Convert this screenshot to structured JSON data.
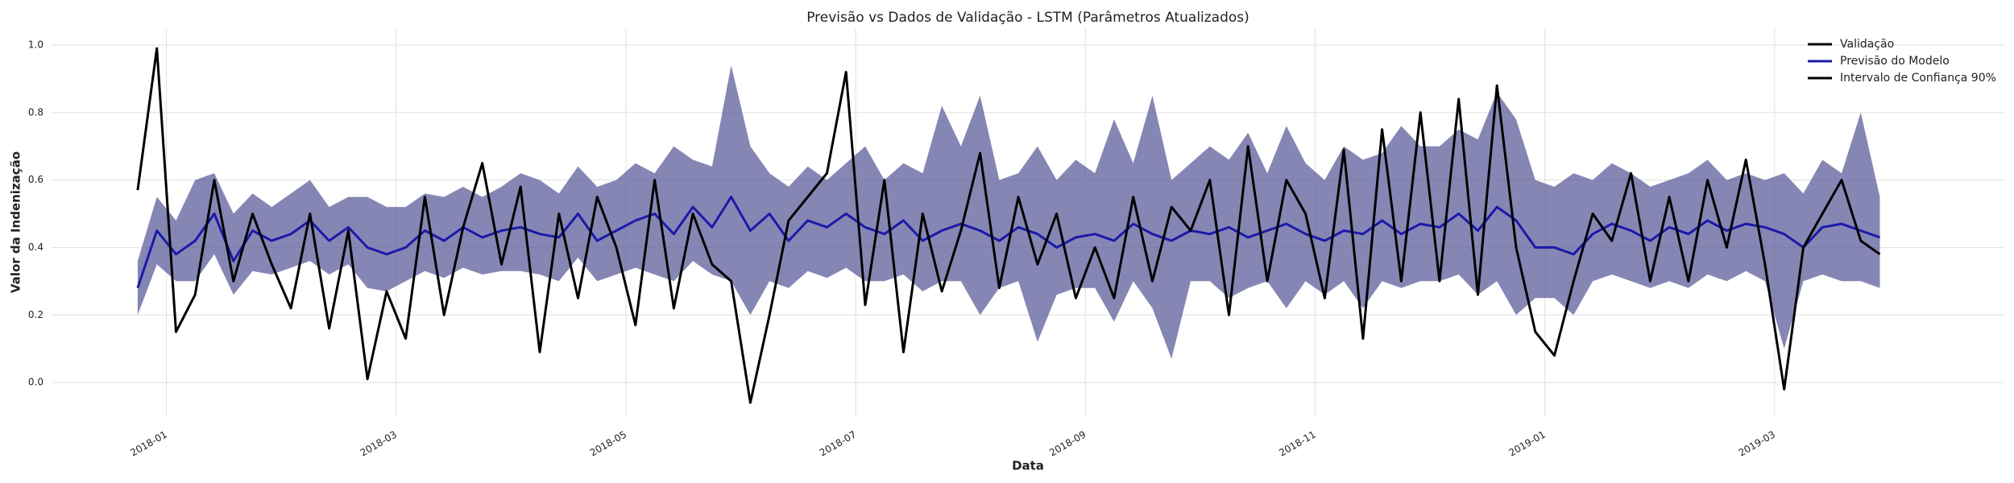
{
  "chart_data": {
    "type": "line",
    "title": "Previsão vs Dados de Validação - LSTM (Parâmetros Atualizados)",
    "x_label": "Data",
    "y_label": "Valor da Indenização",
    "x": [
      "2017-12",
      "2017-12",
      "2017-12",
      "2017-12",
      "2017-12",
      "2017-12",
      "2018-01",
      "2018-01",
      "2018-01",
      "2018-01",
      "2018-01",
      "2018-01",
      "2018-02",
      "2018-02",
      "2018-02",
      "2018-02",
      "2018-02",
      "2018-02",
      "2018-03",
      "2018-03",
      "2018-03",
      "2018-03",
      "2018-03",
      "2018-03",
      "2018-04",
      "2018-04",
      "2018-04",
      "2018-04",
      "2018-04",
      "2018-04",
      "2018-05",
      "2018-05",
      "2018-05",
      "2018-05",
      "2018-05",
      "2018-05",
      "2018-06",
      "2018-06",
      "2018-06",
      "2018-06",
      "2018-06",
      "2018-06",
      "2018-07",
      "2018-07",
      "2018-07",
      "2018-07",
      "2018-07",
      "2018-07",
      "2018-08",
      "2018-08",
      "2018-08",
      "2018-08",
      "2018-08",
      "2018-08",
      "2018-09",
      "2018-09",
      "2018-09",
      "2018-09",
      "2018-09",
      "2018-09",
      "2018-10",
      "2018-10",
      "2018-10",
      "2018-10",
      "2018-10",
      "2018-10",
      "2018-11",
      "2018-11",
      "2018-11",
      "2018-11",
      "2018-11",
      "2018-11",
      "2018-12",
      "2018-12",
      "2018-12",
      "2018-12",
      "2018-12",
      "2018-12",
      "2019-01",
      "2019-01",
      "2019-01",
      "2019-01",
      "2019-01",
      "2019-01",
      "2019-02",
      "2019-02",
      "2019-02",
      "2019-02",
      "2019-02",
      "2019-02",
      "2019-03",
      "2019-03",
      "2019-03",
      "2019-03",
      "2019-03",
      "2019-03"
    ],
    "series": [
      {
        "name": "Validação",
        "color": "#000000",
        "values": [
          null,
          null,
          null,
          null,
          0.57,
          0.99,
          0.15,
          0.26,
          0.6,
          0.3,
          0.5,
          0.35,
          0.22,
          0.5,
          0.16,
          0.45,
          0.01,
          0.27,
          0.13,
          0.55,
          0.2,
          0.46,
          0.65,
          0.35,
          0.58,
          0.09,
          0.5,
          0.25,
          0.55,
          0.4,
          0.17,
          0.6,
          0.22,
          0.5,
          0.35,
          0.3,
          -0.06,
          0.2,
          0.48,
          0.55,
          0.62,
          0.92,
          0.23,
          0.6,
          0.09,
          0.5,
          0.27,
          0.45,
          0.68,
          0.28,
          0.55,
          0.35,
          0.5,
          0.25,
          0.4,
          0.25,
          0.55,
          0.3,
          0.52,
          0.45,
          0.6,
          0.2,
          0.7,
          0.3,
          0.6,
          0.5,
          0.25,
          0.69,
          0.13,
          0.75,
          0.3,
          0.8,
          0.3,
          0.84,
          0.26,
          0.88,
          0.4,
          0.15,
          0.08,
          0.3,
          0.5,
          0.42,
          0.62,
          0.3,
          0.55,
          0.3,
          0.6,
          0.4,
          0.66,
          0.35,
          -0.02,
          0.4,
          0.5,
          0.6,
          0.42,
          0.38
        ]
      },
      {
        "name": "Previsão do Modelo",
        "color": "#1a1aa8",
        "values": [
          null,
          null,
          null,
          null,
          0.28,
          0.45,
          0.38,
          0.42,
          0.5,
          0.36,
          0.45,
          0.42,
          0.44,
          0.48,
          0.42,
          0.46,
          0.4,
          0.38,
          0.4,
          0.45,
          0.42,
          0.46,
          0.43,
          0.45,
          0.46,
          0.44,
          0.43,
          0.5,
          0.42,
          0.45,
          0.48,
          0.5,
          0.44,
          0.52,
          0.46,
          0.55,
          0.45,
          0.5,
          0.42,
          0.48,
          0.46,
          0.5,
          0.46,
          0.44,
          0.48,
          0.42,
          0.45,
          0.47,
          0.45,
          0.42,
          0.46,
          0.44,
          0.4,
          0.43,
          0.44,
          0.42,
          0.47,
          0.44,
          0.42,
          0.45,
          0.44,
          0.46,
          0.43,
          0.45,
          0.47,
          0.44,
          0.42,
          0.45,
          0.44,
          0.48,
          0.44,
          0.47,
          0.46,
          0.5,
          0.45,
          0.52,
          0.48,
          0.4,
          0.4,
          0.38,
          0.44,
          0.47,
          0.45,
          0.42,
          0.46,
          0.44,
          0.48,
          0.45,
          0.47,
          0.46,
          0.44,
          0.4,
          0.46,
          0.47,
          0.45,
          0.43
        ]
      }
    ],
    "interval": {
      "name": "Intervalo de Confiança 90%",
      "color": "#000000",
      "fill": "#5d5d9c",
      "lower": [
        null,
        null,
        null,
        null,
        0.2,
        0.35,
        0.3,
        0.3,
        0.38,
        0.26,
        0.33,
        0.32,
        0.34,
        0.36,
        0.32,
        0.35,
        0.28,
        0.27,
        0.3,
        0.33,
        0.31,
        0.34,
        0.32,
        0.33,
        0.33,
        0.32,
        0.3,
        0.37,
        0.3,
        0.32,
        0.34,
        0.32,
        0.3,
        0.36,
        0.32,
        0.3,
        0.2,
        0.3,
        0.28,
        0.33,
        0.31,
        0.34,
        0.3,
        0.3,
        0.32,
        0.27,
        0.3,
        0.3,
        0.2,
        0.28,
        0.3,
        0.12,
        0.26,
        0.28,
        0.28,
        0.18,
        0.3,
        0.22,
        0.07,
        0.3,
        0.3,
        0.25,
        0.28,
        0.3,
        0.22,
        0.3,
        0.26,
        0.3,
        0.22,
        0.3,
        0.28,
        0.3,
        0.3,
        0.32,
        0.26,
        0.3,
        0.2,
        0.25,
        0.25,
        0.2,
        0.3,
        0.32,
        0.3,
        0.28,
        0.3,
        0.28,
        0.32,
        0.3,
        0.33,
        0.3,
        0.1,
        0.3,
        0.32,
        0.3,
        0.3,
        0.28
      ],
      "upper": [
        null,
        null,
        null,
        null,
        0.36,
        0.55,
        0.48,
        0.6,
        0.62,
        0.5,
        0.56,
        0.52,
        0.56,
        0.6,
        0.52,
        0.55,
        0.55,
        0.52,
        0.52,
        0.56,
        0.55,
        0.58,
        0.55,
        0.58,
        0.62,
        0.6,
        0.56,
        0.64,
        0.58,
        0.6,
        0.65,
        0.62,
        0.7,
        0.66,
        0.64,
        0.94,
        0.7,
        0.62,
        0.58,
        0.64,
        0.6,
        0.65,
        0.7,
        0.6,
        0.65,
        0.62,
        0.82,
        0.7,
        0.85,
        0.6,
        0.62,
        0.7,
        0.6,
        0.66,
        0.62,
        0.78,
        0.65,
        0.85,
        0.6,
        0.65,
        0.7,
        0.66,
        0.74,
        0.62,
        0.76,
        0.65,
        0.6,
        0.7,
        0.66,
        0.68,
        0.76,
        0.7,
        0.7,
        0.75,
        0.72,
        0.86,
        0.78,
        0.6,
        0.58,
        0.62,
        0.6,
        0.65,
        0.62,
        0.58,
        0.6,
        0.62,
        0.66,
        0.6,
        0.62,
        0.6,
        0.62,
        0.56,
        0.66,
        0.62,
        0.8,
        0.55
      ]
    },
    "xlim": [
      "2017-12",
      "2019-05"
    ],
    "xticks": [
      "2018-01",
      "2018-03",
      "2018-05",
      "2018-07",
      "2018-09",
      "2018-11",
      "2019-01",
      "2019-03"
    ],
    "ylim": [
      -0.1,
      1.05
    ],
    "yticks": [
      {
        "value": 0,
        "label": "0.0"
      },
      0.2,
      0.4,
      0.6,
      0.8,
      {
        "value": 1,
        "label": "1.0"
      }
    ],
    "grid": true,
    "legend": "upper right"
  }
}
